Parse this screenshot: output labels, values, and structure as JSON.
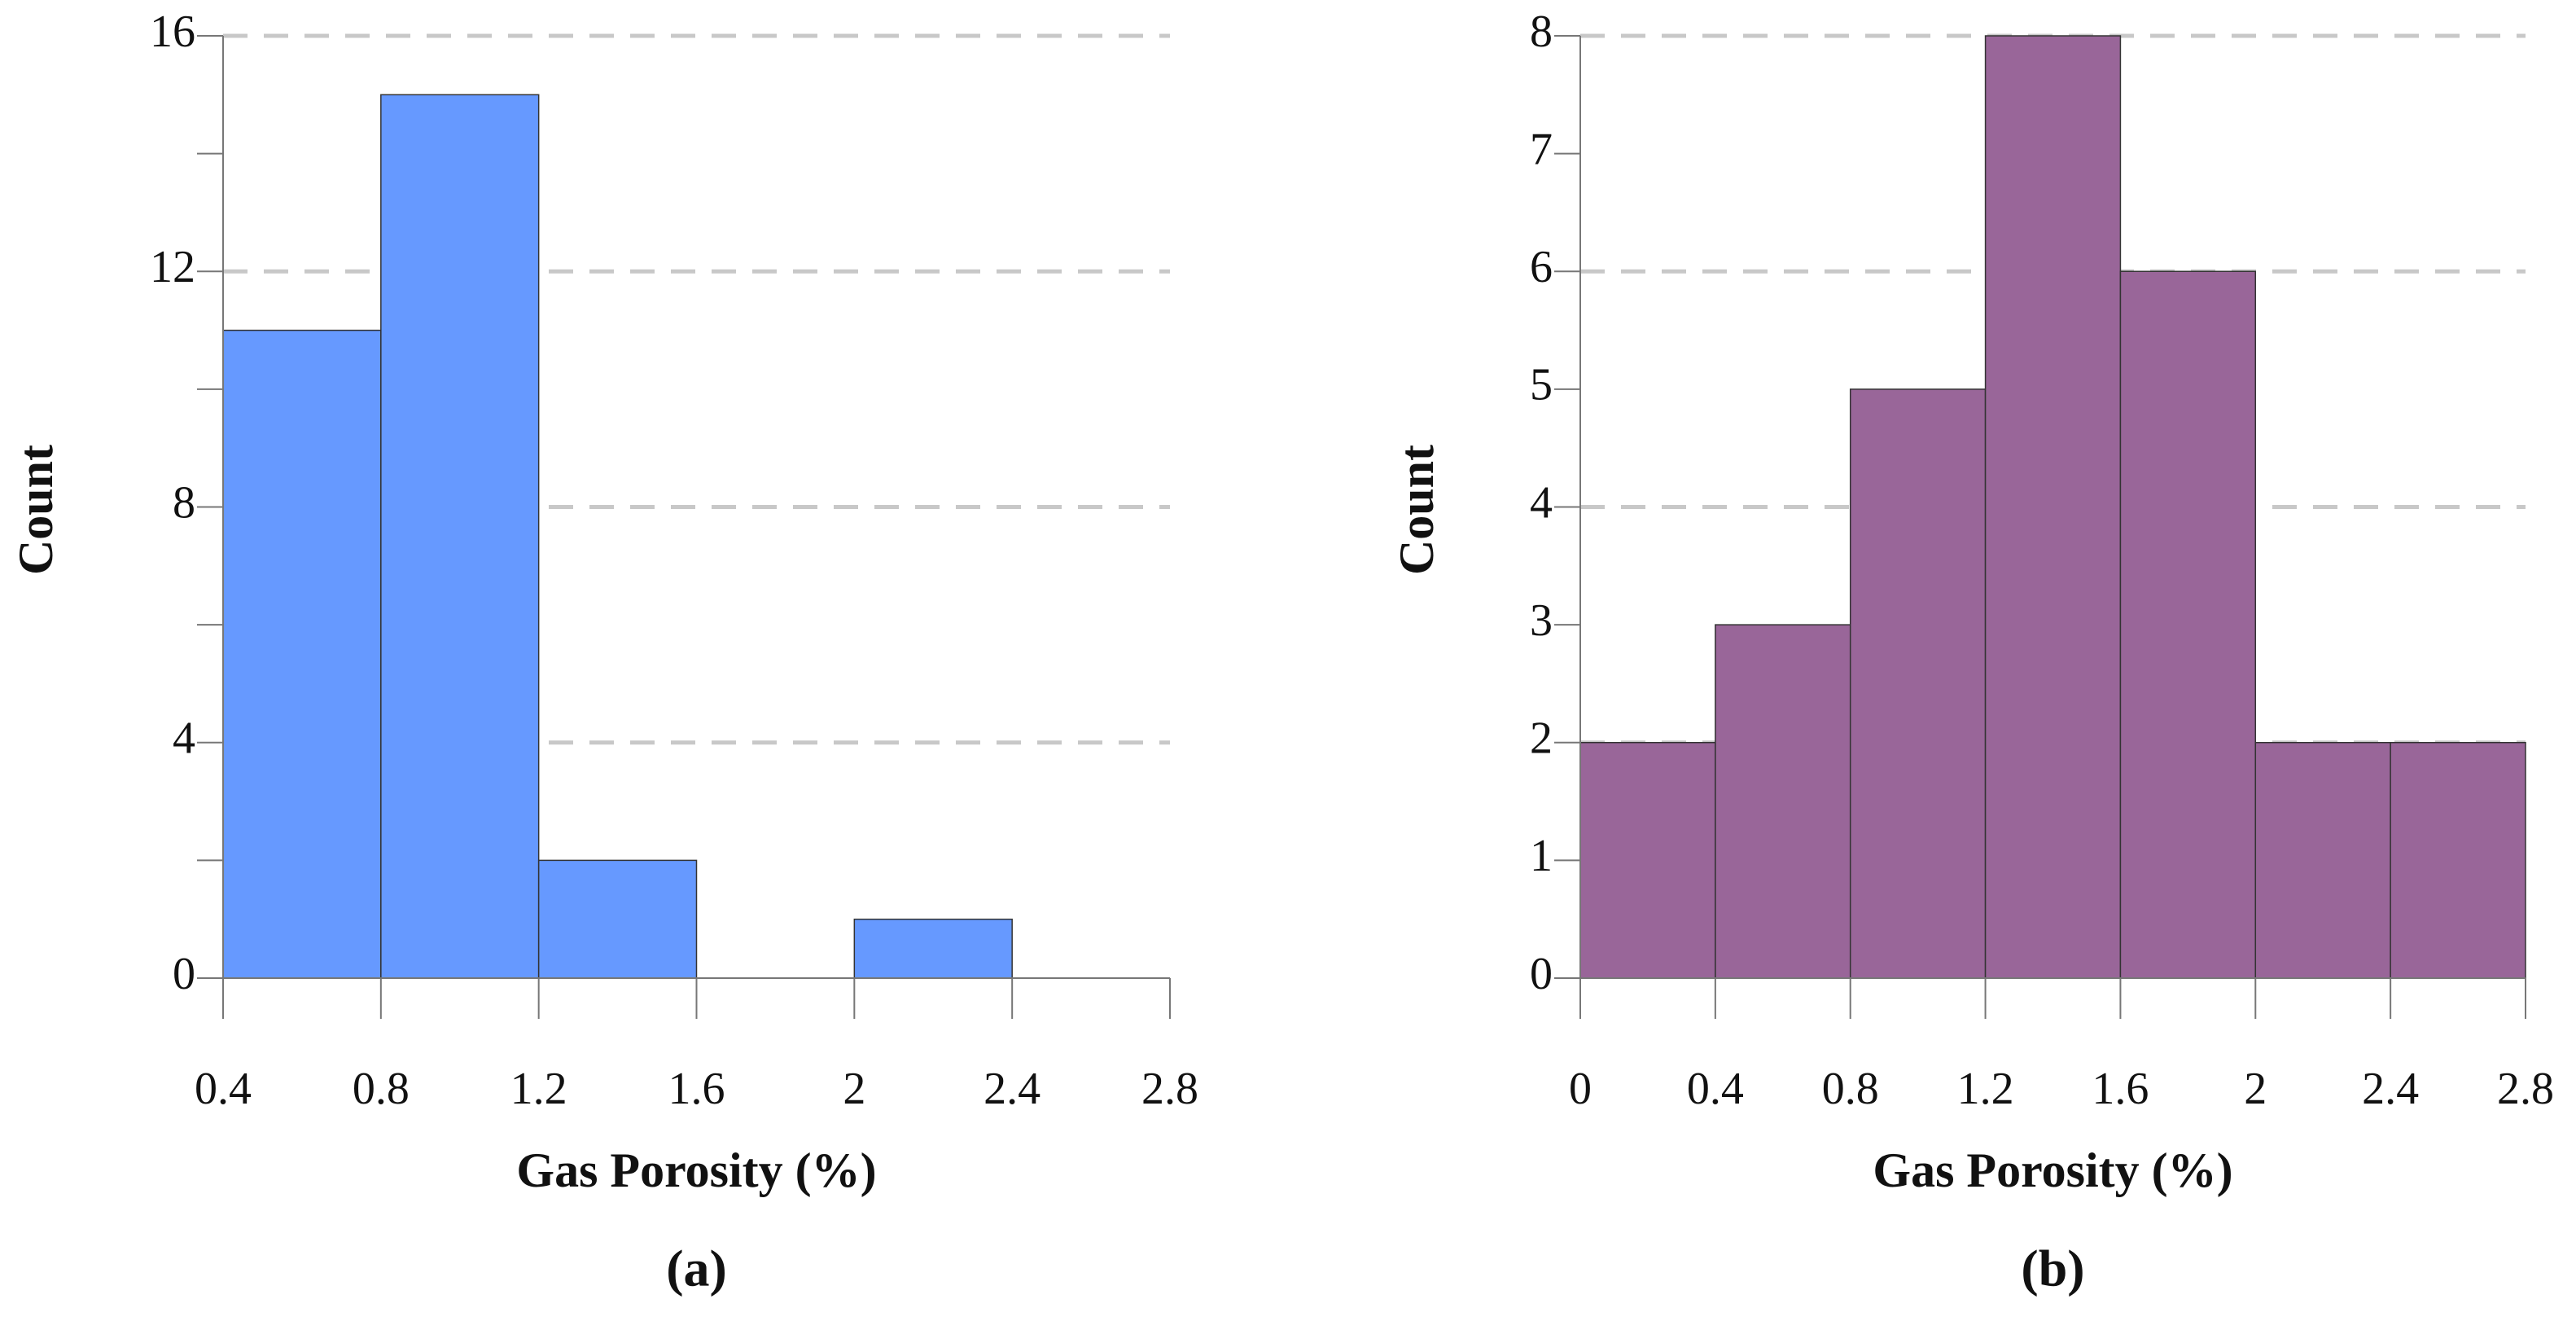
{
  "chart_data": [
    {
      "type": "histogram",
      "caption": "(a)",
      "xlabel": "Gas Porosity (%)",
      "ylabel": "Count",
      "bins": [
        0.4,
        0.8,
        1.2,
        1.6,
        2,
        2.4,
        2.8
      ],
      "counts": [
        11,
        15,
        2,
        0,
        1,
        0
      ],
      "color": "#6699ff",
      "xlim": [
        0.4,
        2.8
      ],
      "xticks": [
        0.4,
        0.8,
        1.2,
        1.6,
        2,
        2.4,
        2.8
      ],
      "ylim": [
        0,
        16
      ],
      "yticks": [
        0,
        4,
        8,
        12,
        16
      ],
      "yminor": [
        2,
        6,
        10,
        14
      ],
      "ygrid": [
        4,
        8,
        12,
        16
      ]
    },
    {
      "type": "histogram",
      "caption": "(b)",
      "xlabel": "Gas Porosity (%)",
      "ylabel": "Count",
      "bins": [
        0,
        0.4,
        0.8,
        1.2,
        1.6,
        2,
        2.4,
        2.8
      ],
      "counts": [
        2,
        3,
        5,
        8,
        6,
        2,
        2
      ],
      "color": "#996699",
      "xlim": [
        0,
        2.8
      ],
      "xticks": [
        0,
        0.4,
        0.8,
        1.2,
        1.6,
        2,
        2.4,
        2.8
      ],
      "ylim": [
        0,
        8
      ],
      "yticks": [
        0,
        1,
        2,
        3,
        4,
        5,
        6,
        7,
        8
      ],
      "yminor": [],
      "ygrid": [
        2,
        4,
        6,
        8
      ]
    }
  ]
}
